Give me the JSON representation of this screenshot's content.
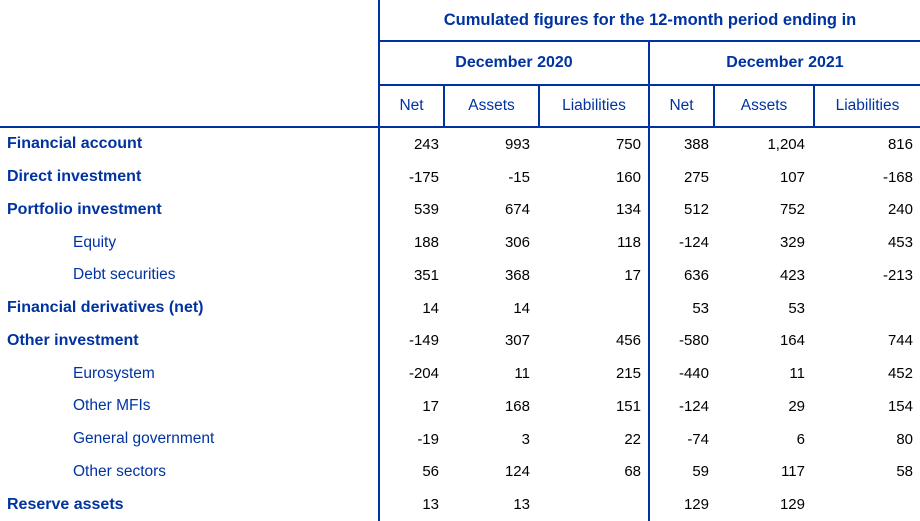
{
  "colors": {
    "accent_blue": "#0033a0",
    "value_text": "#000000",
    "background": "#ffffff"
  },
  "table": {
    "title": "Cumulated figures for the 12-month period ending in",
    "column_groups": [
      "December 2020",
      "December 2021"
    ],
    "sub_headers": [
      "Net",
      "Assets",
      "Liabilities",
      "Net",
      "Assets",
      "Liabilities"
    ],
    "rows": [
      {
        "label": "Financial account",
        "level": 0,
        "values": [
          "243",
          "993",
          "750",
          "388",
          "1,204",
          "816"
        ]
      },
      {
        "label": "Direct investment",
        "level": 0,
        "values": [
          "-175",
          "-15",
          "160",
          "275",
          "107",
          "-168"
        ]
      },
      {
        "label": "Portfolio investment",
        "level": 0,
        "values": [
          "539",
          "674",
          "134",
          "512",
          "752",
          "240"
        ]
      },
      {
        "label": "Equity",
        "level": 1,
        "values": [
          "188",
          "306",
          "118",
          "-124",
          "329",
          "453"
        ]
      },
      {
        "label": "Debt securities",
        "level": 1,
        "values": [
          "351",
          "368",
          "17",
          "636",
          "423",
          "-213"
        ]
      },
      {
        "label": "Financial derivatives (net)",
        "level": 0,
        "values": [
          "14",
          "14",
          "",
          "53",
          "53",
          ""
        ]
      },
      {
        "label": "Other investment",
        "level": 0,
        "values": [
          "-149",
          "307",
          "456",
          "-580",
          "164",
          "744"
        ]
      },
      {
        "label": "Eurosystem",
        "level": 1,
        "values": [
          "-204",
          "11",
          "215",
          "-440",
          "11",
          "452"
        ]
      },
      {
        "label": "Other MFIs",
        "level": 1,
        "values": [
          "17",
          "168",
          "151",
          "-124",
          "29",
          "154"
        ]
      },
      {
        "label": "General government",
        "level": 1,
        "values": [
          "-19",
          "3",
          "22",
          "-74",
          "6",
          "80"
        ]
      },
      {
        "label": "Other sectors",
        "level": 1,
        "values": [
          "56",
          "124",
          "68",
          "59",
          "117",
          "58"
        ]
      },
      {
        "label": "Reserve assets",
        "level": 0,
        "values": [
          "13",
          "13",
          "",
          "129",
          "129",
          ""
        ]
      }
    ]
  }
}
